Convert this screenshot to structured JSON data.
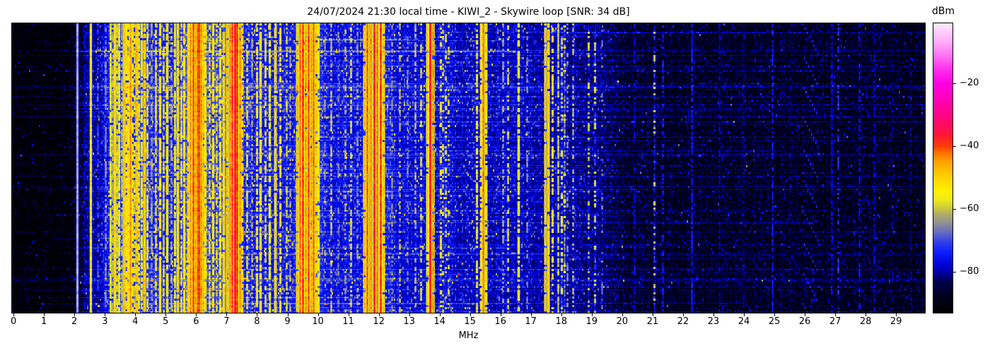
{
  "title": "24/07/2024 21:30 local time - KIWI_2 - Skywire loop [SNR: 34 dB]",
  "header": {
    "date": "24/07/2024",
    "time": "21:30 local time",
    "receiver": "KIWI_2",
    "antenna": "Skywire loop",
    "snr": "34 dB"
  },
  "chart_data": {
    "type": "heatmap",
    "subtype": "hf_spectrogram_waterfall",
    "title": "24/07/2024 21:30 local time - KIWI_2 - Skywire loop [SNR: 34 dB]",
    "xlabel": "MHz",
    "x_range": [
      0,
      30
    ],
    "x_ticks": [
      "0",
      "1",
      "2",
      "3",
      "4",
      "5",
      "6",
      "7",
      "8",
      "9",
      "10",
      "11",
      "12",
      "13",
      "14",
      "15",
      "16",
      "17",
      "18",
      "19",
      "20",
      "21",
      "22",
      "23",
      "24",
      "25",
      "26",
      "27",
      "28",
      "29"
    ],
    "y_axis": "time (unlabeled, newest at bottom)",
    "colorbar": {
      "label": "dBm",
      "ticks": [
        "−20",
        "−40",
        "−60",
        "−80"
      ],
      "tick_values": [
        -20,
        -40,
        -60,
        -80
      ],
      "vmin": -93,
      "vmax": -1
    },
    "colormap_stops": [
      [
        0.0,
        "#000000"
      ],
      [
        0.06,
        "#00001e"
      ],
      [
        0.11,
        "#000055"
      ],
      [
        0.141,
        "#0000a8"
      ],
      [
        0.17,
        "#0004dd"
      ],
      [
        0.21,
        "#0d1fff"
      ],
      [
        0.245,
        "#3341e8"
      ],
      [
        0.28,
        "#6a6fbe"
      ],
      [
        0.31,
        "#918f94"
      ],
      [
        0.34,
        "#b0ab66"
      ],
      [
        0.359,
        "#c9c640"
      ],
      [
        0.39,
        "#eeea1c"
      ],
      [
        0.42,
        "#fff200"
      ],
      [
        0.47,
        "#ffd000"
      ],
      [
        0.52,
        "#ffa400"
      ],
      [
        0.555,
        "#ff6a00"
      ],
      [
        0.576,
        "#ff3a08"
      ],
      [
        0.615,
        "#ff1535"
      ],
      [
        0.652,
        "#ff0a64"
      ],
      [
        0.7,
        "#ff0495"
      ],
      [
        0.75,
        "#ff01c2"
      ],
      [
        0.793,
        "#ff00e2"
      ],
      [
        0.84,
        "#ff2eee"
      ],
      [
        0.89,
        "#ff74f4"
      ],
      [
        0.94,
        "#ffb0fa"
      ],
      [
        1.0,
        "#ffe8ff"
      ]
    ],
    "noise_floor_dbm": [
      [
        0,
        -92
      ],
      [
        1.9,
        -92
      ],
      [
        2.1,
        -87
      ],
      [
        2.5,
        -83
      ],
      [
        3.0,
        -79
      ],
      [
        3.2,
        -74
      ],
      [
        4.55,
        -75
      ],
      [
        5.3,
        -77
      ],
      [
        5.7,
        -71
      ],
      [
        6.45,
        -72
      ],
      [
        7.0,
        -72
      ],
      [
        7.6,
        -75
      ],
      [
        8.0,
        -77
      ],
      [
        9.25,
        -77
      ],
      [
        9.3,
        -72
      ],
      [
        10.1,
        -75
      ],
      [
        10.3,
        -78
      ],
      [
        11.45,
        -78
      ],
      [
        11.5,
        -74
      ],
      [
        12.25,
        -75
      ],
      [
        12.6,
        -79
      ],
      [
        14.4,
        -79
      ],
      [
        14.6,
        -81
      ],
      [
        15.1,
        -80
      ],
      [
        16.6,
        -81
      ],
      [
        18.1,
        -82
      ],
      [
        19.2,
        -84
      ],
      [
        20.0,
        -87
      ],
      [
        21.5,
        -88
      ],
      [
        26.0,
        -88
      ],
      [
        28.0,
        -88
      ],
      [
        30,
        -89
      ]
    ],
    "carriers": [
      [
        2.09,
        -60,
        1
      ],
      [
        2.33,
        -77,
        0.5
      ],
      [
        2.55,
        -55,
        1
      ],
      [
        2.78,
        -69,
        0.5
      ],
      [
        3.02,
        -64,
        0.6
      ],
      [
        3.2,
        -56,
        0.9
      ],
      [
        3.26,
        -60,
        0.7
      ],
      [
        3.33,
        -50,
        1
      ],
      [
        3.4,
        -58,
        0.8
      ],
      [
        3.48,
        -54,
        0.9
      ],
      [
        3.56,
        -60,
        0.7
      ],
      [
        3.63,
        -47,
        1
      ],
      [
        3.7,
        -55,
        0.8
      ],
      [
        3.77,
        -50,
        0.9
      ],
      [
        3.84,
        -44,
        1
      ],
      [
        3.91,
        -53,
        0.8
      ],
      [
        3.98,
        -57,
        0.7
      ],
      [
        4.05,
        -47,
        0.9
      ],
      [
        4.13,
        -55,
        0.7
      ],
      [
        4.22,
        -51,
        0.8
      ],
      [
        4.31,
        -48,
        0.9
      ],
      [
        4.4,
        -57,
        0.7
      ],
      [
        4.55,
        -62,
        0.6
      ],
      [
        4.68,
        -57,
        0.7
      ],
      [
        4.81,
        -53,
        0.8
      ],
      [
        4.94,
        -58,
        0.7
      ],
      [
        5.06,
        -51,
        0.9
      ],
      [
        5.18,
        -61,
        0.6
      ],
      [
        5.3,
        -55,
        0.8
      ],
      [
        5.4,
        -49,
        0.9
      ],
      [
        5.51,
        -57,
        0.7
      ],
      [
        5.62,
        -53,
        0.8
      ],
      [
        5.74,
        -49,
        0.9
      ],
      [
        5.82,
        -44,
        1
      ],
      [
        5.9,
        -39,
        1
      ],
      [
        5.98,
        -45,
        0.9
      ],
      [
        6.04,
        -41,
        1
      ],
      [
        6.1,
        -38,
        1
      ],
      [
        6.16,
        -43,
        1
      ],
      [
        6.23,
        -47,
        0.9
      ],
      [
        6.31,
        -51,
        0.8
      ],
      [
        6.45,
        -57,
        0.7
      ],
      [
        6.57,
        -52,
        0.8
      ],
      [
        6.68,
        -58,
        0.6
      ],
      [
        6.8,
        -54,
        0.8
      ],
      [
        6.92,
        -49,
        0.9
      ],
      [
        7.03,
        -47,
        0.9
      ],
      [
        7.11,
        -43,
        1
      ],
      [
        7.19,
        -39,
        1
      ],
      [
        7.28,
        -34,
        1
      ],
      [
        7.36,
        -38,
        1
      ],
      [
        7.44,
        -44,
        0.9
      ],
      [
        7.52,
        -50,
        0.8
      ],
      [
        7.68,
        -57,
        0.7
      ],
      [
        7.84,
        -61,
        0.5
      ],
      [
        8.0,
        -55,
        0.7
      ],
      [
        8.12,
        -51,
        0.8
      ],
      [
        8.27,
        -57,
        0.6
      ],
      [
        8.42,
        -53,
        0.8
      ],
      [
        8.6,
        -49,
        0.9
      ],
      [
        8.78,
        -55,
        0.7
      ],
      [
        8.97,
        -59,
        0.5
      ],
      [
        9.1,
        -62,
        0.4
      ],
      [
        9.33,
        -47,
        0.9
      ],
      [
        9.42,
        -42,
        1
      ],
      [
        9.51,
        -38,
        1
      ],
      [
        9.6,
        -44,
        0.9
      ],
      [
        9.69,
        -40,
        1
      ],
      [
        9.78,
        -45,
        0.9
      ],
      [
        9.87,
        -41,
        1
      ],
      [
        9.95,
        -49,
        0.8
      ],
      [
        10.02,
        -53,
        0.8
      ],
      [
        10.23,
        -64,
        0.4
      ],
      [
        10.45,
        -60,
        0.5
      ],
      [
        10.68,
        -65,
        0.4
      ],
      [
        10.9,
        -61,
        0.4
      ],
      [
        11.1,
        -58,
        0.5
      ],
      [
        11.3,
        -63,
        0.4
      ],
      [
        11.54,
        -47,
        0.9
      ],
      [
        11.63,
        -41,
        1
      ],
      [
        11.74,
        -44,
        1
      ],
      [
        11.85,
        -36,
        1
      ],
      [
        11.95,
        -42,
        1
      ],
      [
        12.06,
        -38,
        1
      ],
      [
        12.16,
        -48,
        0.9
      ],
      [
        12.45,
        -64,
        0.4
      ],
      [
        12.7,
        -60,
        0.5
      ],
      [
        12.95,
        -65,
        0.4
      ],
      [
        13.2,
        -61,
        0.5
      ],
      [
        13.4,
        -58,
        0.5
      ],
      [
        13.6,
        -49,
        0.9
      ],
      [
        13.7,
        -34,
        1
      ],
      [
        13.79,
        -44,
        0.9
      ],
      [
        14.05,
        -55,
        0.4
      ],
      [
        14.12,
        -58,
        0.35
      ],
      [
        14.21,
        -56,
        0.35
      ],
      [
        14.31,
        -59,
        0.3
      ],
      [
        15.22,
        -56,
        0.6
      ],
      [
        15.36,
        -52,
        0.8
      ],
      [
        15.43,
        -42,
        1
      ],
      [
        15.52,
        -50,
        0.8
      ],
      [
        16.08,
        -62,
        0.5
      ],
      [
        16.25,
        -58,
        0.5
      ],
      [
        16.6,
        -52,
        0.7
      ],
      [
        16.88,
        -64,
        0.4
      ],
      [
        17.49,
        -47,
        0.9
      ],
      [
        17.58,
        -49,
        0.9
      ],
      [
        17.72,
        -56,
        0.6
      ],
      [
        17.9,
        -60,
        0.8
      ],
      [
        18.02,
        -55,
        0.5
      ],
      [
        18.1,
        -50,
        0.12
      ],
      [
        18.2,
        -64,
        0.4
      ],
      [
        18.38,
        -61,
        0.4
      ],
      [
        18.9,
        -59,
        0.35
      ],
      [
        19.12,
        -57,
        0.3
      ],
      [
        19.35,
        -66,
        0.3
      ],
      [
        20.4,
        -76,
        0.6
      ],
      [
        21.05,
        -58,
        0.22
      ],
      [
        21.35,
        -74,
        0.5
      ],
      [
        22.3,
        -74,
        0.8
      ],
      [
        23.2,
        -78,
        0.5
      ],
      [
        24.0,
        -80,
        0.4
      ],
      [
        24.95,
        -74,
        0.7
      ],
      [
        25.5,
        -80,
        0.4
      ],
      [
        26.9,
        -76,
        0.6
      ],
      [
        27.1,
        -72,
        0.4
      ],
      [
        27.8,
        -75,
        0.45
      ],
      [
        28.3,
        -77,
        0.5
      ],
      [
        28.9,
        -80,
        0.4
      ],
      [
        29.5,
        -79,
        0.4
      ]
    ],
    "ionosonde_sweeps": [
      {
        "f0": 14.86,
        "f1": 15.14,
        "period_rows": 16,
        "level_dbm": -63
      },
      {
        "f0": 25.95,
        "f1": 26.45,
        "period_rows": 44,
        "level_dbm": -72
      }
    ],
    "broadband_events": [
      {
        "row": 39,
        "f0": 1.95,
        "f1": 16.5,
        "boost_db": 14
      },
      {
        "row": 40,
        "f0": 1.95,
        "f1": 16.5,
        "boost_db": 8
      }
    ],
    "impulse_streaks": {
      "count": 130,
      "min_boost_db": 2.5,
      "max_boost_db": 8
    }
  }
}
